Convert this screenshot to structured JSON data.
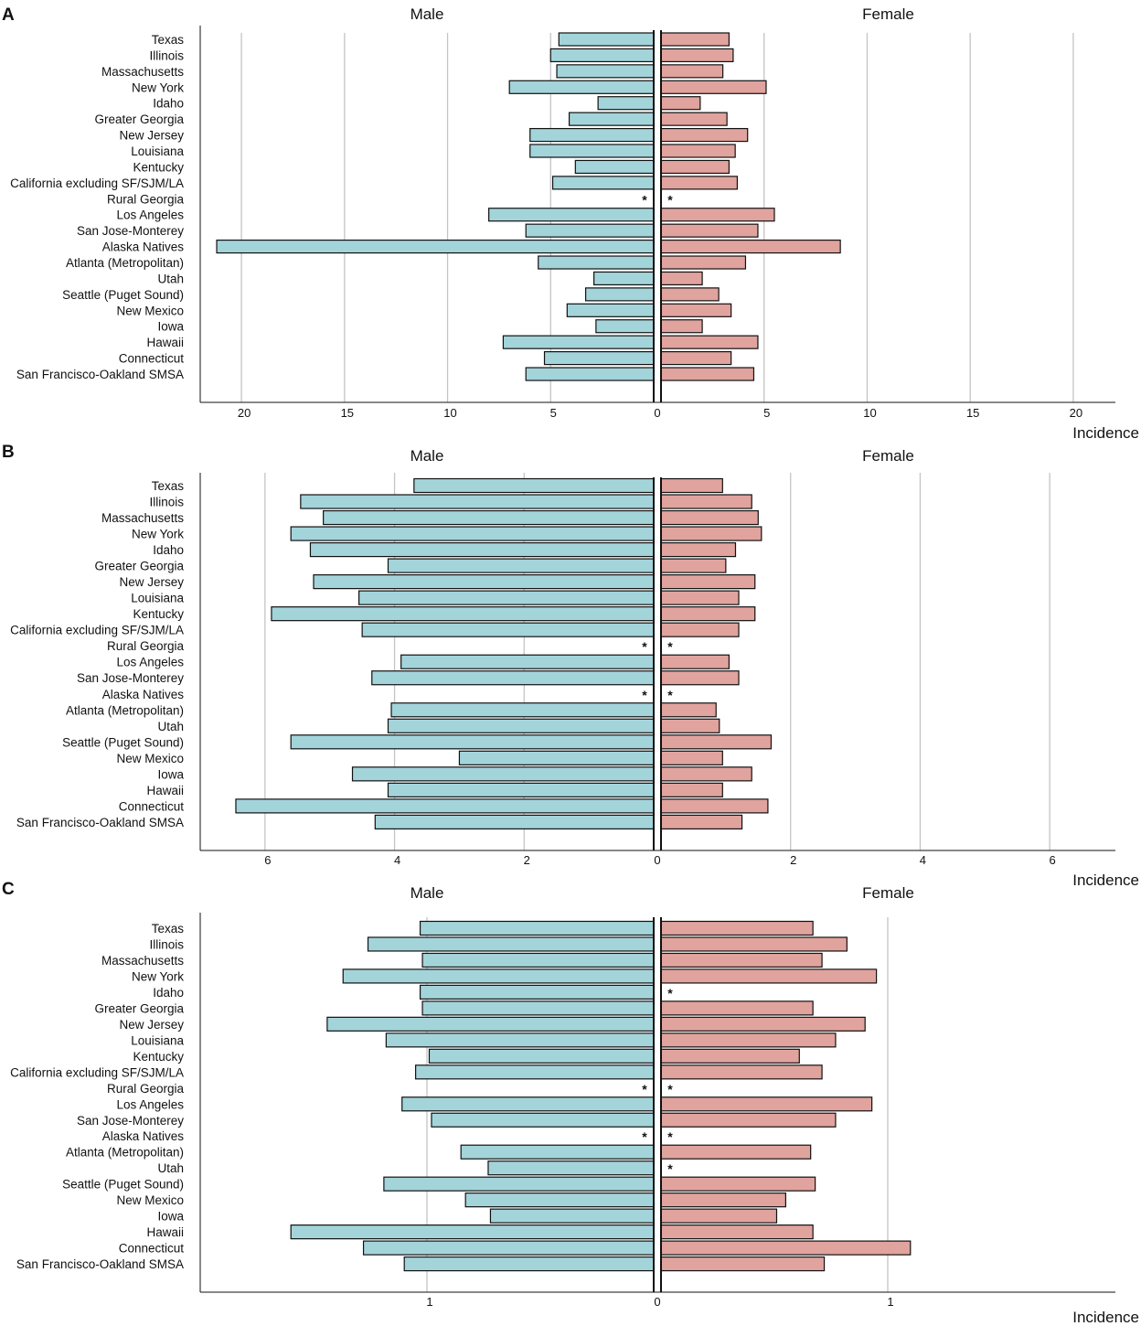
{
  "figure": {
    "colors": {
      "male_bar": "#A3D4DA",
      "female_bar": "#E0A39E",
      "stroke": "#111111",
      "grid": "#c4c4c4"
    },
    "categories": [
      "Texas",
      "Illinois",
      "Massachusetts",
      "New York",
      "Idaho",
      "Greater Georgia",
      "New Jersey",
      "Louisiana",
      "Kentucky",
      "California excluding SF/SJM/LA",
      "Rural Georgia",
      "Los Angeles",
      "San Jose-Monterey",
      "Alaska Natives",
      "Atlanta (Metropolitan)",
      "Utah",
      "Seattle (Puget Sound)",
      "New Mexico",
      "Iowa",
      "Hawaii",
      "Connecticut",
      "San Francisco-Oakland SMSA"
    ],
    "missing_marker": "*"
  },
  "chart_data": [
    {
      "panel": "A",
      "type": "bar",
      "orientation": "horizontal-butterfly",
      "left_title": "Male",
      "right_title": "Female",
      "xlabel": "Incidence",
      "xlim": [
        0,
        22
      ],
      "ticks": [
        20,
        15,
        10,
        5,
        0,
        5,
        10,
        15,
        20
      ],
      "tick_values": [
        20,
        15,
        10,
        5,
        0,
        5,
        10,
        15,
        20
      ],
      "grid_values": [
        5,
        10,
        15,
        20
      ],
      "series": [
        {
          "name": "Male",
          "values": [
            4.6,
            5.0,
            4.7,
            7.0,
            2.7,
            4.1,
            6.0,
            6.0,
            3.8,
            4.9,
            null,
            8.0,
            6.2,
            21.2,
            5.6,
            2.9,
            3.3,
            4.2,
            2.8,
            7.3,
            5.3,
            6.2
          ]
        },
        {
          "name": "Female",
          "values": [
            3.3,
            3.5,
            3.0,
            5.1,
            1.9,
            3.2,
            4.2,
            3.6,
            3.3,
            3.7,
            null,
            5.5,
            4.7,
            8.7,
            4.1,
            2.0,
            2.8,
            3.4,
            2.0,
            4.7,
            3.4,
            4.5
          ]
        }
      ]
    },
    {
      "panel": "B",
      "type": "bar",
      "orientation": "horizontal-butterfly",
      "left_title": "Male",
      "right_title": "Female",
      "xlabel": "Incidence",
      "xlim": [
        0,
        7
      ],
      "ticks": [
        6,
        4,
        2,
        0,
        2,
        4,
        6
      ],
      "tick_values": [
        6,
        4,
        2,
        0,
        2,
        4,
        6
      ],
      "grid_values": [
        2,
        4,
        6
      ],
      "series": [
        {
          "name": "Male",
          "values": [
            3.7,
            5.45,
            5.1,
            5.6,
            5.3,
            4.1,
            5.25,
            4.55,
            5.9,
            4.5,
            null,
            3.9,
            4.35,
            null,
            4.05,
            4.1,
            5.6,
            3.0,
            4.65,
            4.1,
            6.45,
            4.3
          ]
        },
        {
          "name": "Female",
          "values": [
            0.95,
            1.4,
            1.5,
            1.55,
            1.15,
            1.0,
            1.45,
            1.2,
            1.45,
            1.2,
            null,
            1.05,
            1.2,
            null,
            0.85,
            0.9,
            1.7,
            0.95,
            1.4,
            0.95,
            1.65,
            1.25
          ]
        }
      ]
    },
    {
      "panel": "C",
      "type": "bar",
      "orientation": "horizontal-butterfly",
      "left_title": "Male",
      "right_title": "Female",
      "xlabel": "Incidence",
      "xlim": [
        0,
        2
      ],
      "ticks": [
        1,
        0,
        1
      ],
      "tick_values": [
        1,
        0,
        1
      ],
      "grid_values": [
        1
      ],
      "series": [
        {
          "name": "Male",
          "values": [
            1.03,
            1.26,
            1.02,
            1.37,
            1.03,
            1.02,
            1.44,
            1.18,
            0.99,
            1.05,
            null,
            1.11,
            0.98,
            null,
            0.85,
            0.73,
            1.19,
            0.83,
            0.72,
            1.6,
            1.28,
            1.1
          ]
        },
        {
          "name": "Female",
          "values": [
            0.67,
            0.82,
            0.71,
            0.95,
            null,
            0.67,
            0.9,
            0.77,
            0.61,
            0.71,
            null,
            0.93,
            0.77,
            null,
            0.66,
            null,
            0.68,
            0.55,
            0.51,
            0.67,
            1.1,
            0.72
          ]
        }
      ]
    }
  ]
}
